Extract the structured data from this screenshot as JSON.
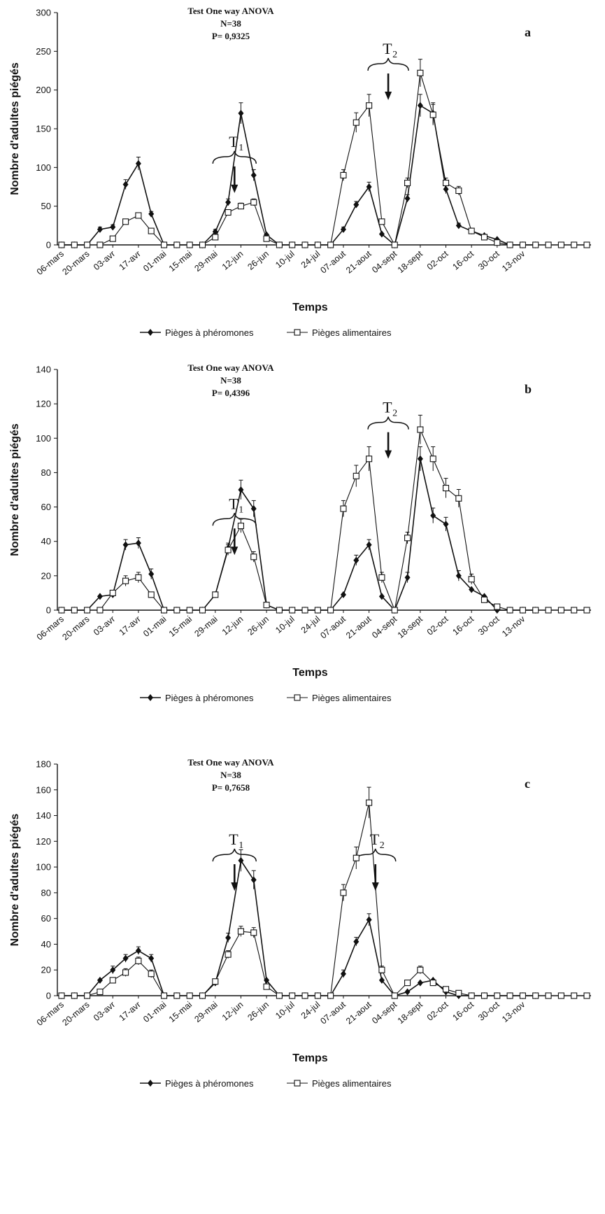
{
  "chart_data": [
    {
      "type": "line",
      "panel_letter": "a",
      "stats": [
        "Test One way ANOVA",
        "N=38",
        "P= 0,9325"
      ],
      "xlabel": "Temps",
      "ylabel": "Nombre d'adultes piégés",
      "yticks": [
        "300",
        "250",
        "200",
        "150",
        "100",
        "50",
        "0"
      ],
      "ylim": [
        0,
        300
      ],
      "categories": [
        "06-mars",
        "20-mars",
        "03-avr",
        "17-avr",
        "01-mai",
        "15-mai",
        "29-mai",
        "12-jun",
        "26-jun",
        "10-jul",
        "24-jul",
        "07-aout",
        "21-aout",
        "04-sept",
        "18-sept",
        "02-oct",
        "16-oct",
        "30-oct",
        "13-nov"
      ],
      "treatments": [
        {
          "label": "T",
          "sub": "1",
          "x": 13.5
        },
        {
          "label": "T",
          "sub": "2",
          "x": 25.5
        }
      ],
      "series": [
        {
          "name": "Pièges à phéromones",
          "marker": "diamond",
          "x": [
            0,
            1,
            2,
            3,
            4,
            5,
            6,
            7,
            8,
            9,
            10,
            11,
            12,
            13,
            14,
            15,
            16,
            17,
            18,
            19,
            20,
            21,
            22,
            23,
            24,
            25,
            26,
            27,
            28,
            29,
            30,
            31,
            32,
            33,
            34,
            35,
            36,
            37
          ],
          "y": [
            0,
            0,
            0,
            20,
            23,
            78,
            105,
            40,
            0,
            0,
            0,
            0,
            17,
            55,
            170,
            90,
            13,
            0,
            0,
            0,
            0,
            0,
            20,
            52,
            75,
            14,
            0,
            60,
            180,
            170,
            72,
            25,
            18,
            12,
            7,
            0,
            0,
            0
          ]
        },
        {
          "name": "Pièges alimentaires",
          "marker": "square",
          "x": [
            0,
            1,
            2,
            3,
            4,
            5,
            6,
            7,
            8,
            9,
            10,
            11,
            12,
            13,
            14,
            15,
            16,
            17,
            18,
            19,
            20,
            21,
            22,
            23,
            24,
            25,
            26,
            27,
            28,
            29,
            30,
            31,
            32,
            33,
            34,
            35,
            36,
            37,
            38,
            39,
            40,
            41
          ],
          "y": [
            0,
            0,
            0,
            0,
            8,
            30,
            38,
            18,
            0,
            0,
            0,
            0,
            10,
            42,
            50,
            55,
            8,
            0,
            0,
            0,
            0,
            0,
            90,
            158,
            180,
            30,
            0,
            80,
            222,
            168,
            80,
            70,
            18,
            10,
            3,
            0,
            0,
            0,
            0,
            0,
            0,
            0
          ]
        }
      ]
    },
    {
      "type": "line",
      "panel_letter": "b",
      "stats": [
        "Test One way ANOVA",
        "N=38",
        "P= 0,4396"
      ],
      "xlabel": "Temps",
      "ylabel": "Nombre d'adultes piégés",
      "yticks": [
        "140",
        "120",
        "100",
        "80",
        "60",
        "40",
        "20",
        "0"
      ],
      "ylim": [
        0,
        140
      ],
      "categories": [
        "06-mars",
        "20-mars",
        "03-avr",
        "17-avr",
        "01-mai",
        "15-mai",
        "29-mai",
        "12-jun",
        "26-jun",
        "10-jul",
        "24-jul",
        "07-aout",
        "21-aout",
        "04-sept",
        "18-sept",
        "02-oct",
        "16-oct",
        "30-oct",
        "13-nov"
      ],
      "treatments": [
        {
          "label": "T",
          "sub": "1",
          "x": 13.5
        },
        {
          "label": "T",
          "sub": "2",
          "x": 25.5
        }
      ],
      "series": [
        {
          "name": "Pièges à phéromones",
          "marker": "diamond",
          "x": [
            0,
            1,
            2,
            3,
            4,
            5,
            6,
            7,
            8,
            9,
            10,
            11,
            12,
            13,
            14,
            15,
            16,
            17,
            18,
            19,
            20,
            21,
            22,
            23,
            24,
            25,
            26,
            27,
            28,
            29,
            30,
            31,
            32,
            33,
            34,
            35,
            36,
            37
          ],
          "y": [
            0,
            0,
            0,
            8,
            9,
            38,
            39,
            21,
            0,
            0,
            0,
            0,
            9,
            36,
            70,
            59,
            3,
            0,
            0,
            0,
            0,
            0,
            9,
            29,
            38,
            8,
            0,
            19,
            88,
            55,
            50,
            20,
            12,
            8,
            0,
            0,
            0,
            0
          ]
        },
        {
          "name": "Pièges alimentaires",
          "marker": "square",
          "x": [
            0,
            1,
            2,
            3,
            4,
            5,
            6,
            7,
            8,
            9,
            10,
            11,
            12,
            13,
            14,
            15,
            16,
            17,
            18,
            19,
            20,
            21,
            22,
            23,
            24,
            25,
            26,
            27,
            28,
            29,
            30,
            31,
            32,
            33,
            34,
            35,
            36,
            37,
            38,
            39,
            40,
            41
          ],
          "y": [
            0,
            0,
            0,
            0,
            10,
            17,
            19,
            9,
            0,
            0,
            0,
            0,
            9,
            35,
            49,
            31,
            3,
            0,
            0,
            0,
            0,
            0,
            59,
            78,
            88,
            19,
            0,
            42,
            105,
            88,
            71,
            65,
            18,
            6,
            2,
            0,
            0,
            0,
            0,
            0,
            0,
            0
          ]
        }
      ]
    },
    {
      "type": "line",
      "panel_letter": "c",
      "stats": [
        "Test One way ANOVA",
        "N=38",
        "P= 0,7658"
      ],
      "xlabel": "Temps",
      "ylabel": "Nombre d'adultes piégés",
      "yticks": [
        "180",
        "160",
        "140",
        "120",
        "100",
        "80",
        "60",
        "40",
        "20",
        "0"
      ],
      "ylim": [
        0,
        180
      ],
      "categories": [
        "06-mars",
        "20-mars",
        "03-avr",
        "17-avr",
        "01-mai",
        "15-mai",
        "29-mai",
        "12-jun",
        "26-jun",
        "10-jul",
        "24-jul",
        "07-aout",
        "21-aout",
        "04-sept",
        "18-sept",
        "02-oct",
        "16-oct",
        "30-oct",
        "13-nov"
      ],
      "treatments": [
        {
          "label": "T",
          "sub": "1",
          "x": 13.5
        },
        {
          "label": "T",
          "sub": "2",
          "x": 24.5
        }
      ],
      "series": [
        {
          "name": "Pièges à phéromones",
          "marker": "diamond",
          "x": [
            0,
            1,
            2,
            3,
            4,
            5,
            6,
            7,
            8,
            9,
            10,
            11,
            12,
            13,
            14,
            15,
            16,
            17,
            18,
            19,
            20,
            21,
            22,
            23,
            24,
            25,
            26,
            27,
            28,
            29,
            30,
            31,
            32,
            33,
            34,
            35,
            36,
            37
          ],
          "y": [
            0,
            0,
            0,
            12,
            20,
            29,
            35,
            29,
            0,
            0,
            0,
            0,
            10,
            45,
            105,
            90,
            12,
            0,
            0,
            0,
            0,
            0,
            17,
            42,
            59,
            12,
            0,
            3,
            10,
            12,
            3,
            0,
            0,
            0,
            0,
            0,
            0,
            0
          ]
        },
        {
          "name": "Pièges alimentaires",
          "marker": "square",
          "x": [
            0,
            1,
            2,
            3,
            4,
            5,
            6,
            7,
            8,
            9,
            10,
            11,
            12,
            13,
            14,
            15,
            16,
            17,
            18,
            19,
            20,
            21,
            22,
            23,
            24,
            25,
            26,
            27,
            28,
            29,
            30,
            31,
            32,
            33,
            34,
            35,
            36,
            37,
            38,
            39,
            40,
            41
          ],
          "y": [
            0,
            0,
            0,
            3,
            12,
            18,
            27,
            17,
            0,
            0,
            0,
            0,
            11,
            32,
            50,
            49,
            7,
            0,
            0,
            0,
            0,
            0,
            80,
            107,
            150,
            20,
            0,
            10,
            20,
            10,
            5,
            2,
            0,
            0,
            0,
            0,
            0,
            0,
            0,
            0,
            0,
            0
          ]
        }
      ]
    }
  ],
  "legend": {
    "pheromone_label": "Pièges à phéromones",
    "food_label": "Pièges alimentaires"
  }
}
